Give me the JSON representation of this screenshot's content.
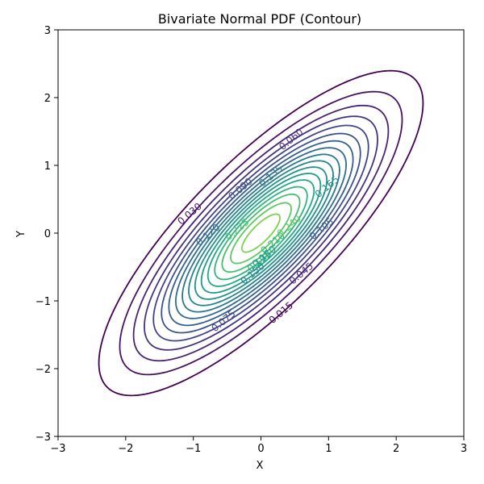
{
  "chart_data": {
    "type": "contour",
    "title": "Bivariate Normal PDF (Contour)",
    "xlabel": "X",
    "ylabel": "Y",
    "xlim": [
      -3,
      3
    ],
    "ylim": [
      -3,
      3
    ],
    "xticks": [
      -3,
      -2,
      -1,
      0,
      1,
      2,
      3
    ],
    "yticks": [
      -3,
      -2,
      -1,
      0,
      1,
      2,
      3
    ],
    "xtick_labels": [
      "−3",
      "−2",
      "−1",
      "0",
      "1",
      "2",
      "3"
    ],
    "ytick_labels": [
      "−3",
      "−2",
      "−1",
      "0",
      "1",
      "2",
      "3"
    ],
    "grid": false,
    "colormap": "viridis",
    "distribution": {
      "mean": [
        0,
        0
      ],
      "std": [
        1,
        1
      ],
      "correlation": 0.8
    },
    "levels": [
      0.015,
      0.03,
      0.045,
      0.06,
      0.075,
      0.09,
      0.105,
      0.12,
      0.135,
      0.15,
      0.165,
      0.18,
      0.195,
      0.21,
      0.225,
      0.24,
      0.255
    ],
    "level_colors": [
      "#440154",
      "#471365",
      "#482475",
      "#463480",
      "#414487",
      "#3b528b",
      "#355f8d",
      "#2f6c8e",
      "#2a788e",
      "#25848e",
      "#21918c",
      "#1e9c89",
      "#22a884",
      "#2fb47c",
      "#44bf70",
      "#5ec962",
      "#7ad151"
    ],
    "contour_labels": [
      {
        "text": "0.015",
        "level": 0.015,
        "x": 0.3,
        "y": -1.18
      },
      {
        "text": "0.030",
        "level": 0.03,
        "x": -1.05,
        "y": 0.28
      },
      {
        "text": "0.045",
        "level": 0.045,
        "x": 0.6,
        "y": -0.6
      },
      {
        "text": "0.060",
        "level": 0.06,
        "x": 0.45,
        "y": 1.38
      },
      {
        "text": "0.075",
        "level": 0.075,
        "x": -0.55,
        "y": -1.3
      },
      {
        "text": "0.090",
        "level": 0.09,
        "x": -0.3,
        "y": 0.65
      },
      {
        "text": "0.105",
        "level": 0.105,
        "x": 0.9,
        "y": 0.06
      },
      {
        "text": "0.120",
        "level": 0.12,
        "x": -0.78,
        "y": -0.03
      },
      {
        "text": "0.135",
        "level": 0.135,
        "x": 0.15,
        "y": 0.84
      },
      {
        "text": "0.150",
        "level": 0.15,
        "x": -0.12,
        "y": -0.6
      },
      {
        "text": "0.165",
        "level": 0.165,
        "x": 0.98,
        "y": 0.68
      },
      {
        "text": "0.180",
        "level": 0.18,
        "x": 0.05,
        "y": -0.35
      },
      {
        "text": "0.195",
        "level": 0.195,
        "x": -0.02,
        "y": -0.42
      },
      {
        "text": "0.210",
        "level": 0.21,
        "x": 0.18,
        "y": -0.15
      },
      {
        "text": "0.225",
        "level": 0.225,
        "x": -0.35,
        "y": 0.05
      },
      {
        "text": "0.240",
        "level": 0.24,
        "x": 0.42,
        "y": 0.1
      }
    ]
  }
}
